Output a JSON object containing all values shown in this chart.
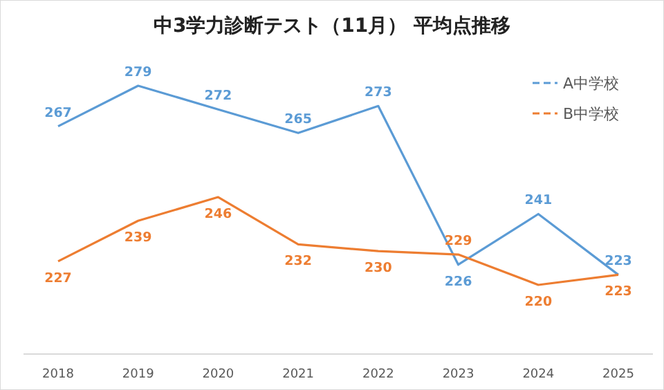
{
  "chart_data": {
    "type": "line",
    "title": "中3学力診断テスト（11月） 平均点推移",
    "categories": [
      "2018",
      "2019",
      "2020",
      "2021",
      "2022",
      "2023",
      "2024",
      "2025"
    ],
    "series": [
      {
        "name": "A中学校",
        "color": "#5b9bd5",
        "values": [
          267,
          279,
          272,
          265,
          273,
          226,
          241,
          223
        ]
      },
      {
        "name": "B中学校",
        "color": "#ed7d31",
        "values": [
          227,
          239,
          246,
          232,
          230,
          229,
          220,
          223
        ]
      }
    ],
    "data_labels": true,
    "legend": "top right",
    "line_style": "solid"
  }
}
